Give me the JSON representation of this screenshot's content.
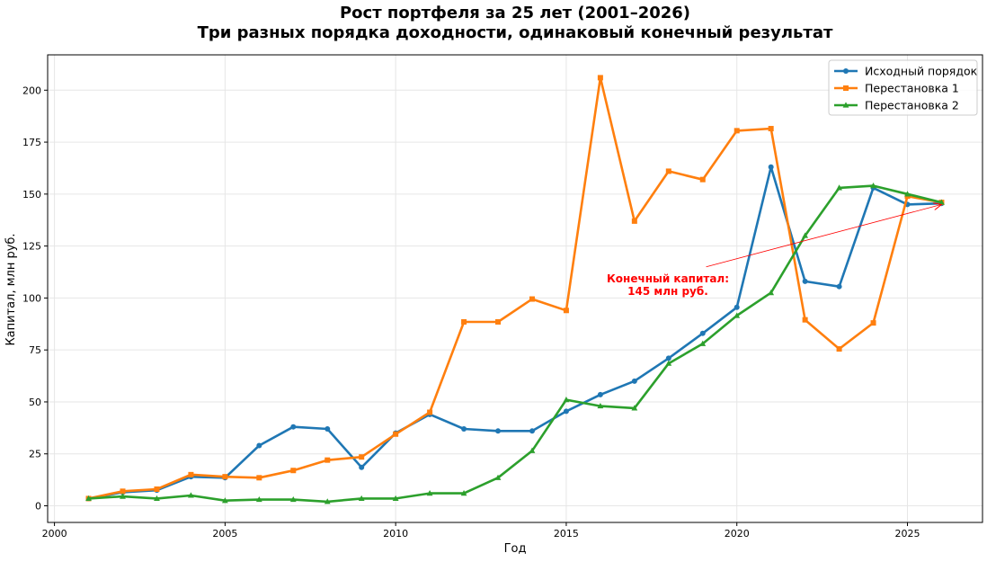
{
  "chart_data": {
    "type": "line",
    "title": "Рост портфеля за 25 лет (2001–2026)",
    "subtitle": "Три разных порядка доходности, одинаковый конечный результат",
    "xlabel": "Год",
    "ylabel": "Капитал, млн руб.",
    "xlim": [
      1999.8,
      2027.2
    ],
    "ylim": [
      -8,
      217
    ],
    "x_ticks": [
      2000,
      2005,
      2010,
      2015,
      2020,
      2025
    ],
    "y_ticks": [
      0,
      25,
      50,
      75,
      100,
      125,
      150,
      175,
      200
    ],
    "grid": true,
    "legend_position": "top-right",
    "x": [
      2001,
      2002,
      2003,
      2004,
      2005,
      2006,
      2007,
      2008,
      2009,
      2010,
      2011,
      2012,
      2013,
      2014,
      2015,
      2016,
      2017,
      2018,
      2019,
      2020,
      2021,
      2022,
      2023,
      2024,
      2025,
      2026
    ],
    "series": [
      {
        "name": "Исходный порядок",
        "color": "#1f77b4",
        "marker": "circle",
        "values": [
          3.5,
          6.5,
          7.5,
          14,
          13.5,
          29,
          38,
          37,
          18.5,
          35,
          44,
          37,
          36,
          36,
          45.5,
          53.5,
          60,
          71,
          83,
          95.5,
          163,
          108,
          105.5,
          153,
          145,
          145.5
        ]
      },
      {
        "name": "Перестановка 1",
        "color": "#ff7f0e",
        "marker": "square",
        "values": [
          3.5,
          7,
          8,
          15,
          14,
          13.5,
          17,
          22,
          23.5,
          34.5,
          45,
          88.5,
          88.5,
          99.5,
          94,
          206,
          137,
          161,
          157,
          180.5,
          181.5,
          89.5,
          75.5,
          88,
          149,
          146
        ]
      },
      {
        "name": "Перестановка 2",
        "color": "#2ca02c",
        "marker": "triangle",
        "values": [
          3.5,
          4.5,
          3.5,
          5,
          2.5,
          3,
          3,
          2,
          3.5,
          3.5,
          6,
          6,
          13.5,
          26.5,
          51,
          48,
          47,
          68.5,
          78,
          91.5,
          102.5,
          130,
          153,
          154,
          150,
          146
        ]
      }
    ],
    "annotation": {
      "text_line1": "Конечный капитал:",
      "text_line2": "145 млн руб.",
      "color": "#ff0000",
      "arrow_from": [
        2019.1,
        115
      ],
      "arrow_to": [
        2026,
        145
      ]
    }
  }
}
